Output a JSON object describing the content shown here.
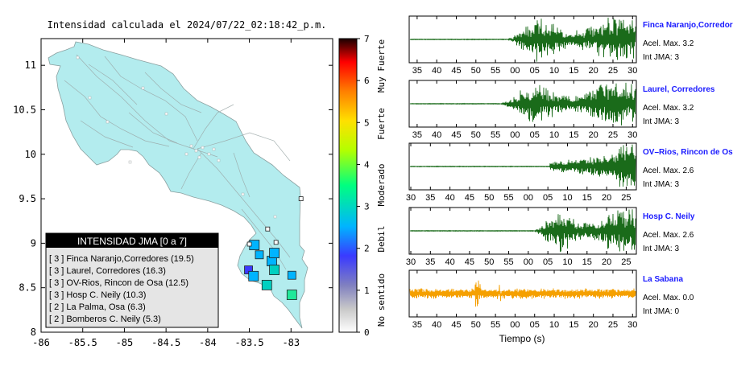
{
  "map": {
    "title": "Intensidad calculada el 2024/07/22_02:18:42_p.m.",
    "chart_data": {
      "type": "scatter",
      "title": "Intensidad calculada el 2024/07/22_02:18:42_p.m.",
      "xlim": [
        -86,
        -82.5
      ],
      "ylim": [
        8,
        11.3
      ],
      "xticks": [
        "-86",
        "-85.5",
        "-85",
        "-84.5",
        "-84",
        "-83.5",
        "-83"
      ],
      "xtick_values": [
        -86,
        -85.5,
        -85,
        -84.5,
        -84,
        -83.5,
        -83
      ],
      "yticks": [
        "8",
        "8.5",
        "9",
        "9.5",
        "10",
        "10.5",
        "11"
      ],
      "ytick_values": [
        8,
        8.5,
        9,
        9.5,
        10,
        10.5,
        11
      ],
      "stations": [
        {
          "lon": -83.51,
          "lat": 8.7,
          "intensity": 2.9
        },
        {
          "lon": -83.45,
          "lat": 8.63,
          "intensity": 3.4
        },
        {
          "lon": -83.29,
          "lat": 8.53,
          "intensity": 3.6
        },
        {
          "lon": -82.99,
          "lat": 8.64,
          "intensity": 3.0
        },
        {
          "lon": -82.99,
          "lat": 8.42,
          "intensity": 4.0
        },
        {
          "lon": -83.38,
          "lat": 8.87,
          "intensity": 3.2
        },
        {
          "lon": -83.23,
          "lat": 8.8,
          "intensity": 3.4
        },
        {
          "lon": -83.2,
          "lat": 8.89,
          "intensity": 3.4
        },
        {
          "lon": -83.2,
          "lat": 8.7,
          "intensity": 3.6
        },
        {
          "lon": -83.44,
          "lat": 8.98,
          "intensity": 3.4
        },
        {
          "lon": -83.18,
          "lat": 9.01,
          "intensity": 0.3
        },
        {
          "lon": -83.5,
          "lat": 8.99,
          "intensity": 0.3
        },
        {
          "lon": -83.28,
          "lat": 9.16,
          "intensity": 0.3
        },
        {
          "lon": -82.88,
          "lat": 9.5,
          "intensity": 0.3
        }
      ]
    },
    "colorbar": {
      "ticks": [
        "0",
        "1",
        "2",
        "3",
        "4",
        "5",
        "6",
        "7"
      ],
      "labels": [
        "No sentido",
        "Debil",
        "Moderado",
        "Fuerte",
        "Muy Fuerte"
      ],
      "colors": [
        "#ffffff",
        "#c8c8c8",
        "#3a3aff",
        "#00b4ff",
        "#00ff80",
        "#b4ff00",
        "#ffe000",
        "#ff8000",
        "#ff0000",
        "#000000"
      ]
    },
    "legend": {
      "title": "INTENSIDAD JMA [0 a 7]",
      "items": [
        "[ 3 ]  Finca Naranjo,Corredores (19.5)",
        "[ 3 ]  Laurel, Corredores (16.3)",
        "[ 3 ]  OV-Rios, Rincon de Osa (12.5)",
        "[ 3 ]  Hosp C. Neily (10.3)",
        "[ 2 ]  La Palma, Osa (6.3)",
        "[ 2 ]  Bomberos C. Neily (5.3)"
      ]
    }
  },
  "waveforms": {
    "xlabel": "Tiempo (s)",
    "panels": [
      {
        "station": "Finca Naranjo,Corredores",
        "accel": "Acel. Max. 3.2",
        "jma": "Int JMA: 3",
        "color": "#1a6b1a",
        "ticks": [
          "35",
          "40",
          "45",
          "50",
          "55",
          "00",
          "05",
          "10",
          "15",
          "20",
          "25",
          "30"
        ],
        "onset": 0.43,
        "peak_amplitude": 3.2
      },
      {
        "station": "Laurel, Corredores",
        "accel": "Acel. Max. 3.2",
        "jma": "Int JMA: 3",
        "color": "#1a6b1a",
        "ticks": [
          "35",
          "40",
          "45",
          "50",
          "55",
          "00",
          "05",
          "10",
          "15",
          "20",
          "25",
          "30"
        ],
        "onset": 0.4,
        "peak_amplitude": 3.2
      },
      {
        "station": "OV–Rios, Rincon de Osa",
        "accel": "Acel. Max. 2.6",
        "jma": "Int JMA: 3",
        "color": "#1a6b1a",
        "ticks": [
          "30",
          "35",
          "40",
          "45",
          "50",
          "55",
          "00",
          "05",
          "10",
          "15",
          "20",
          "25"
        ],
        "onset": 0.62,
        "peak_amplitude": 2.6
      },
      {
        "station": "Hosp C. Neily",
        "accel": "Acel. Max. 2.6",
        "jma": "Int JMA: 3",
        "color": "#1a6b1a",
        "ticks": [
          "30",
          "35",
          "40",
          "45",
          "50",
          "55",
          "00",
          "05",
          "10",
          "15",
          "20",
          "25"
        ],
        "onset": 0.55,
        "peak_amplitude": 2.6
      },
      {
        "station": "La Sabana",
        "accel": "Acel. Max. 0.0",
        "jma": "Int JMA: 0",
        "color": "#f5a000",
        "ticks": [
          "35",
          "40",
          "45",
          "50",
          "55",
          "00",
          "05",
          "10",
          "15",
          "20",
          "25",
          "30"
        ],
        "onset": 0.0,
        "peak_amplitude": 0.0
      }
    ]
  }
}
